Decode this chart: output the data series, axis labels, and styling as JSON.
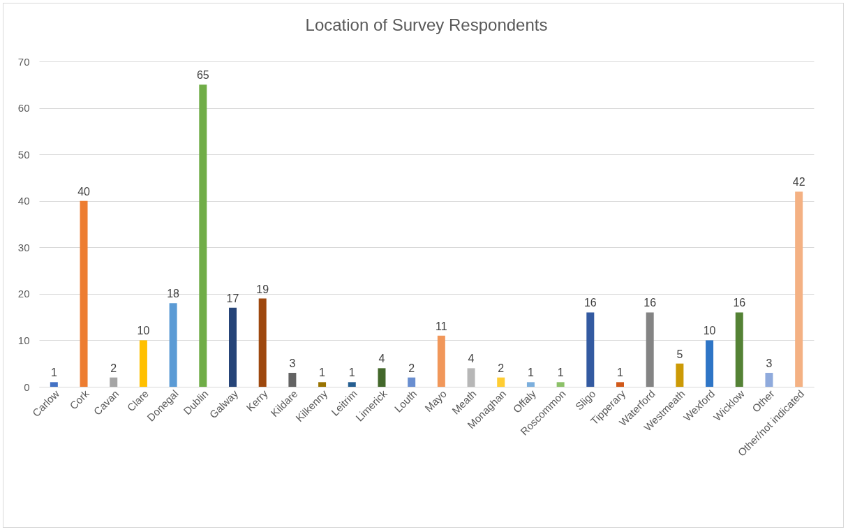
{
  "chart_data": {
    "type": "bar",
    "title": "Location of Survey Respondents",
    "categories": [
      "Carlow",
      "Cork",
      "Cavan",
      "Clare",
      "Donegal",
      "Dublin",
      "Galway",
      "Kerry",
      "Kildare",
      "Kilkenny",
      "Leitrim",
      "Limerick",
      "Louth",
      "Mayo",
      "Meath",
      "Monaghan",
      "Offaly",
      "Roscommon",
      "Sligo",
      "Tipperary",
      "Waterford",
      "Westmeath",
      "Wexford",
      "Wicklow",
      "Other",
      "Other/not indicated"
    ],
    "values": [
      1,
      40,
      2,
      10,
      18,
      65,
      17,
      19,
      3,
      1,
      1,
      4,
      2,
      11,
      4,
      2,
      1,
      1,
      16,
      1,
      16,
      5,
      10,
      16,
      3,
      42
    ],
    "colors": [
      "#4472c4",
      "#ed7d31",
      "#a5a5a5",
      "#ffc000",
      "#5b9bd5",
      "#70ad47",
      "#264478",
      "#9e480e",
      "#636363",
      "#997300",
      "#255e91",
      "#43682b",
      "#698ed0",
      "#f1975a",
      "#b7b7b7",
      "#ffcd33",
      "#7cafdd",
      "#8cc168",
      "#335aa1",
      "#d1591a",
      "#848484",
      "#cc9a06",
      "#2e75c6",
      "#548235",
      "#8faadc",
      "#f4b183"
    ],
    "ylim": [
      0,
      70
    ],
    "yticks": [
      0,
      10,
      20,
      30,
      40,
      50,
      60,
      70
    ],
    "grid": "y",
    "data_labels": true
  }
}
